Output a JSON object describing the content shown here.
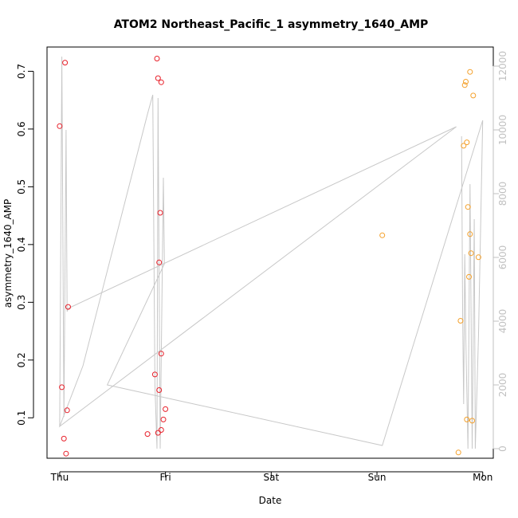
{
  "chart_data": {
    "type": "scatter",
    "title": "ATOM2 Northeast_Pacific_1 asymmetry_1640_AMP",
    "xlabel": "Date",
    "ylabel": "asymmetry_1640_AMP",
    "x_axis": {
      "ticks": [
        {
          "day": 0,
          "label": "Thu"
        },
        {
          "day": 1,
          "label": "Fri"
        },
        {
          "day": 2,
          "label": "Sat"
        },
        {
          "day": 3,
          "label": "Sun"
        },
        {
          "day": 4,
          "label": "Mon"
        }
      ],
      "xlim": [
        -0.12,
        4.1
      ]
    },
    "y_axis": {
      "ticks": [
        0.1,
        0.2,
        0.3,
        0.4,
        0.5,
        0.6,
        0.7
      ],
      "ylim": [
        0.03,
        0.742
      ]
    },
    "y_axis_right": {
      "ticks": [
        0,
        2000,
        4000,
        6000,
        8000,
        10000,
        12000
      ],
      "ylim": [
        -300,
        12600
      ],
      "color": "#c0c0c0"
    },
    "grid": false,
    "colors": {
      "red_series": "#e8202a",
      "orange_series": "#f4a02a",
      "line": "#c8c8c8"
    },
    "series": [
      {
        "color_key": "red_series",
        "points": [
          {
            "day": 0.0,
            "value": 0.605
          },
          {
            "day": 0.02,
            "value": 0.153
          },
          {
            "day": 0.04,
            "value": 0.064
          },
          {
            "day": 0.05,
            "value": 0.715
          },
          {
            "day": 0.06,
            "value": 0.038
          },
          {
            "day": 0.07,
            "value": 0.113
          },
          {
            "day": 0.08,
            "value": 0.292
          },
          {
            "day": 0.83,
            "value": 0.072
          },
          {
            "day": 0.9,
            "value": 0.175
          },
          {
            "day": 0.92,
            "value": 0.722
          },
          {
            "day": 0.93,
            "value": 0.074
          },
          {
            "day": 0.93,
            "value": 0.688
          },
          {
            "day": 0.94,
            "value": 0.148
          },
          {
            "day": 0.94,
            "value": 0.369
          },
          {
            "day": 0.95,
            "value": 0.455
          },
          {
            "day": 0.96,
            "value": 0.079
          },
          {
            "day": 0.96,
            "value": 0.211
          },
          {
            "day": 0.96,
            "value": 0.681
          },
          {
            "day": 0.98,
            "value": 0.097
          },
          {
            "day": 1.0,
            "value": 0.115
          }
        ]
      },
      {
        "color_key": "orange_series",
        "points": [
          {
            "day": 3.05,
            "value": 0.416
          },
          {
            "day": 3.77,
            "value": 0.04
          },
          {
            "day": 3.79,
            "value": 0.268
          },
          {
            "day": 3.82,
            "value": 0.571
          },
          {
            "day": 3.83,
            "value": 0.676
          },
          {
            "day": 3.84,
            "value": 0.682
          },
          {
            "day": 3.85,
            "value": 0.097
          },
          {
            "day": 3.85,
            "value": 0.577
          },
          {
            "day": 3.86,
            "value": 0.465
          },
          {
            "day": 3.87,
            "value": 0.344
          },
          {
            "day": 3.88,
            "value": 0.418
          },
          {
            "day": 3.88,
            "value": 0.699
          },
          {
            "day": 3.89,
            "value": 0.385
          },
          {
            "day": 3.9,
            "value": 0.095
          },
          {
            "day": 3.91,
            "value": 0.658
          },
          {
            "day": 3.96,
            "value": 0.378
          }
        ]
      }
    ],
    "right_axis_line": [
      [
        0.0,
        700
      ],
      [
        0.02,
        12300
      ],
      [
        0.04,
        1000
      ],
      [
        0.06,
        10000
      ],
      [
        0.07,
        4300
      ],
      [
        0.08,
        4400
      ],
      [
        3.75,
        10100
      ],
      [
        0.0,
        700
      ],
      [
        0.22,
        2600
      ],
      [
        0.83,
        10500
      ],
      [
        0.88,
        11100
      ],
      [
        0.9,
        2000
      ],
      [
        0.92,
        0
      ],
      [
        0.93,
        11000
      ],
      [
        0.95,
        0
      ],
      [
        0.98,
        8500
      ],
      [
        0.99,
        5800
      ],
      [
        0.45,
        2000
      ],
      [
        3.05,
        100
      ],
      [
        4.0,
        10300
      ],
      [
        3.96,
        3500
      ],
      [
        3.93,
        0
      ],
      [
        3.92,
        7200
      ],
      [
        3.9,
        0
      ],
      [
        3.88,
        8300
      ],
      [
        3.86,
        0
      ],
      [
        3.84,
        3500
      ],
      [
        3.83,
        6100
      ],
      [
        3.82,
        1400
      ],
      [
        3.81,
        4300
      ],
      [
        3.8,
        9800
      ]
    ]
  }
}
